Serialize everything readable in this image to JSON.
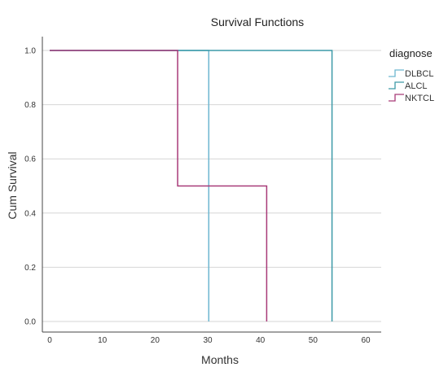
{
  "chart_data": {
    "type": "line",
    "title": "Survival Functions",
    "xlabel": "Months",
    "ylabel": "Cum Survival",
    "xlim": [
      0,
      60
    ],
    "ylim": [
      0,
      1.0
    ],
    "x_ticks": [
      "0",
      "10",
      "20",
      "30",
      "40",
      "50",
      "60"
    ],
    "y_ticks": [
      "0.0",
      "0.2",
      "0.4",
      "0.6",
      "0.8",
      "1.0"
    ],
    "grid": "horizontal",
    "legend": {
      "title": "diagnose",
      "placement": "right",
      "entries": [
        "DLBCL",
        "ALCL",
        "NKTCL"
      ]
    },
    "series": [
      {
        "name": "DLBCL",
        "color": "#6db6d0",
        "step_points": [
          [
            0,
            1.0
          ],
          [
            30.2,
            1.0
          ],
          [
            30.2,
            0.0
          ]
        ]
      },
      {
        "name": "ALCL",
        "color": "#3d9aa8",
        "step_points": [
          [
            0,
            1.0
          ],
          [
            53.6,
            1.0
          ],
          [
            53.6,
            0.0
          ]
        ]
      },
      {
        "name": "NKTCL",
        "color": "#a83a78",
        "step_points": [
          [
            0,
            1.0
          ],
          [
            24.3,
            1.0
          ],
          [
            24.3,
            0.5
          ],
          [
            41.2,
            0.5
          ],
          [
            41.2,
            0.0
          ]
        ]
      }
    ]
  }
}
